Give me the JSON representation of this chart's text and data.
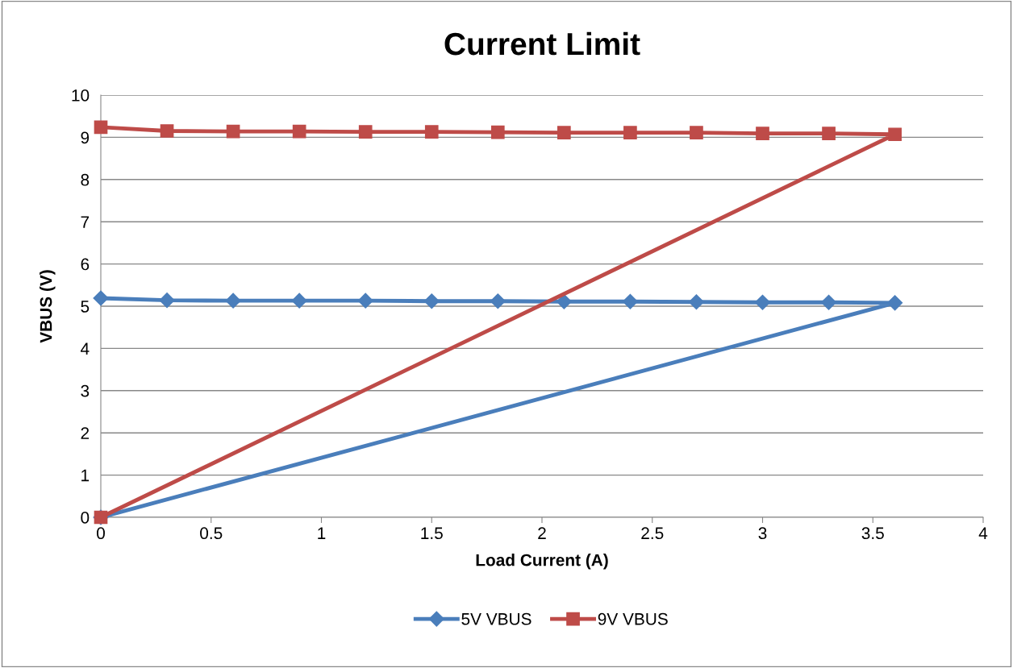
{
  "chart_data": {
    "type": "line",
    "title": "Current Limit",
    "xlabel": "Load Current (A)",
    "ylabel": "VBUS (V)",
    "xlim": [
      0,
      4
    ],
    "xticks": [
      0,
      0.5,
      1,
      1.5,
      2,
      2.5,
      3,
      3.5,
      4
    ],
    "ylim": [
      0,
      10
    ],
    "yticks": [
      0,
      1,
      2,
      3,
      4,
      5,
      6,
      7,
      8,
      9,
      10
    ],
    "grid": "y",
    "legend": "bottom",
    "line_style": "solid",
    "series": [
      {
        "name": "5V VBUS",
        "color": "#4a7ebb",
        "marker": "diamond",
        "x": [
          0,
          0.3,
          0.6,
          0.9,
          1.2,
          1.5,
          1.8,
          2.1,
          2.4,
          2.7,
          3.0,
          3.3,
          3.6,
          0
        ],
        "values": [
          5.19,
          5.14,
          5.13,
          5.13,
          5.13,
          5.12,
          5.12,
          5.11,
          5.11,
          5.1,
          5.09,
          5.09,
          5.08,
          0
        ]
      },
      {
        "name": "9V VBUS",
        "color": "#be4b48",
        "marker": "square",
        "x": [
          0,
          0.3,
          0.6,
          0.9,
          1.2,
          1.5,
          1.8,
          2.1,
          2.4,
          2.7,
          3.0,
          3.3,
          3.6,
          0
        ],
        "values": [
          9.24,
          9.15,
          9.14,
          9.14,
          9.13,
          9.13,
          9.12,
          9.11,
          9.11,
          9.11,
          9.09,
          9.09,
          9.07,
          0
        ]
      }
    ]
  }
}
